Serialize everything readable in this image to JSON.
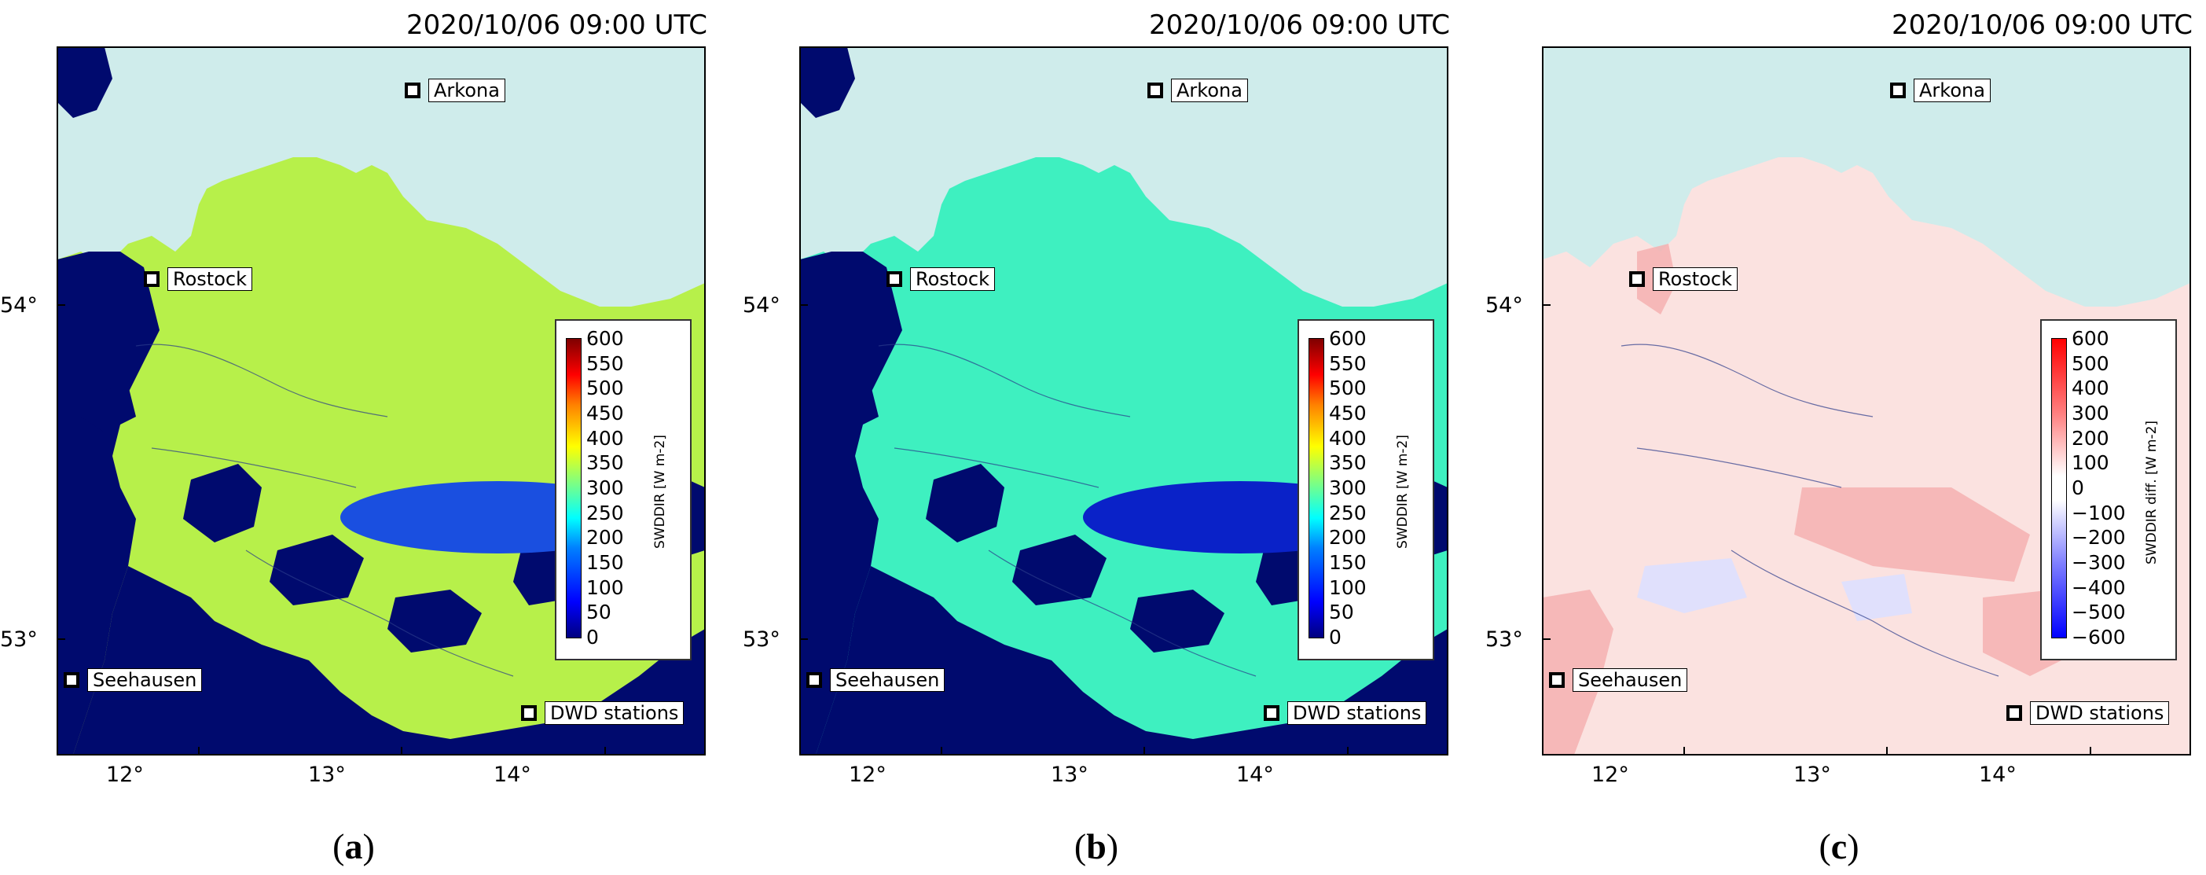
{
  "panels": [
    {
      "id": "a",
      "timestamp": "2020/10/06 09:00 UTC",
      "caption_letter": "a",
      "colorbar_title": "SWDDIR [W m-2]",
      "colorbar_ticks": [
        "600",
        "550",
        "500",
        "450",
        "400",
        "350",
        "300",
        "250",
        "200",
        "150",
        "100",
        "50",
        "0"
      ],
      "colormap": "jet",
      "field_color": "#b7f04a",
      "field_level_w_m2": 330,
      "plume_color": "#1a4fe0"
    },
    {
      "id": "b",
      "timestamp": "2020/10/06 09:00 UTC",
      "caption_letter": "b",
      "colorbar_title": "SWDDIR [W m-2]",
      "colorbar_ticks": [
        "600",
        "550",
        "500",
        "450",
        "400",
        "350",
        "300",
        "250",
        "200",
        "150",
        "100",
        "50",
        "0"
      ],
      "colormap": "jet",
      "field_color": "#3ef0c0",
      "field_level_w_m2": 230,
      "plume_color": "#0a22c8"
    },
    {
      "id": "c",
      "timestamp": "2020/10/06 09:00 UTC",
      "caption_letter": "c",
      "colorbar_title": "SWDDIR diff. [W m-2]",
      "colorbar_ticks": [
        "600",
        "500",
        "400",
        "300",
        "200",
        "100",
        "0",
        "−100",
        "−200",
        "−300",
        "−400",
        "−500",
        "−600"
      ],
      "colormap": "blue-white-red",
      "field_color": "#fbe2e0",
      "plume_color": "#f5b0b0"
    }
  ],
  "stations": [
    {
      "name": "Arkona"
    },
    {
      "name": "Rostock"
    },
    {
      "name": "Seehausen"
    }
  ],
  "legend_marker": "DWD stations",
  "lat_labels": [
    "54°",
    "53°"
  ],
  "lon_labels": [
    "12°",
    "13°",
    "14°"
  ],
  "colors": {
    "sea": "#cfeceb",
    "no_data": "#000a6e",
    "border": "#2a3a8a"
  }
}
